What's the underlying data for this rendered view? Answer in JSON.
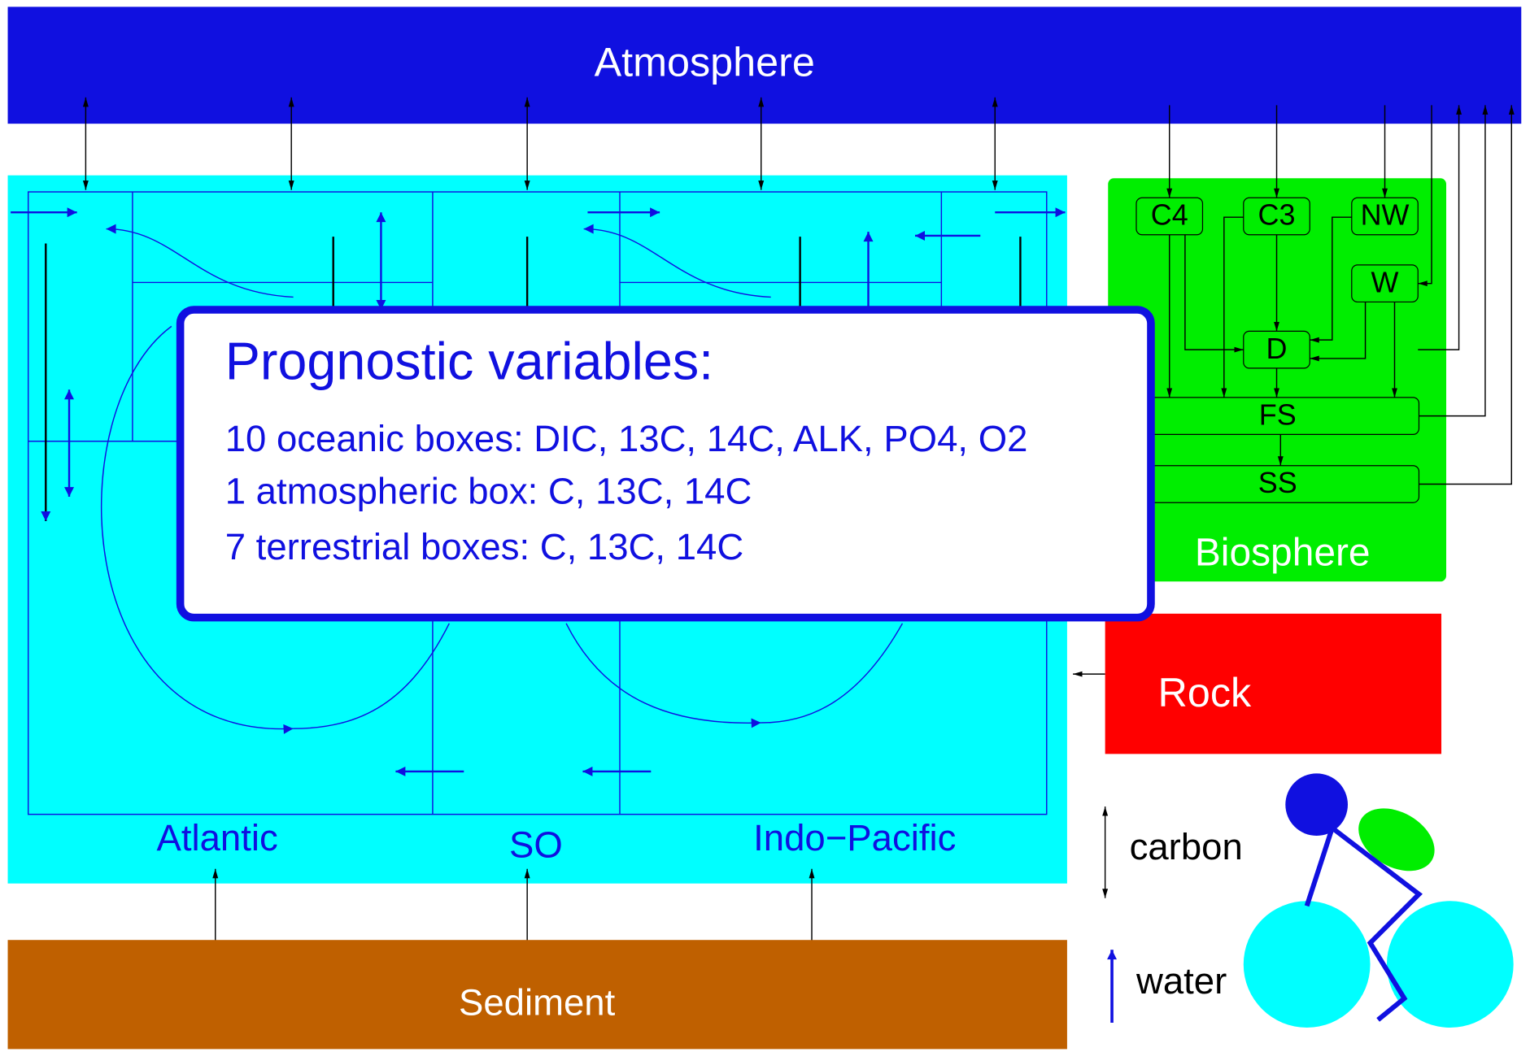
{
  "atmosphere": "Atmosphere",
  "ocean": {
    "basins": [
      "Atlantic",
      "SO",
      "Indo−Pacific"
    ]
  },
  "biosphere": {
    "label": "Biosphere",
    "boxes": [
      "C4",
      "C3",
      "NW",
      "W",
      "D",
      "FS",
      "SS"
    ]
  },
  "rock": "Rock",
  "sediment": "Sediment",
  "info_box": {
    "title": "Prognostic variables:",
    "lines": [
      "10 oceanic boxes: DIC, 13C, 14C, ALK, PO4, O2",
      "1 atmospheric box: C, 13C, 14C",
      "7 terrestrial boxes: C, 13C, 14C"
    ]
  },
  "legend": {
    "carbon": "carbon",
    "water": "water"
  }
}
